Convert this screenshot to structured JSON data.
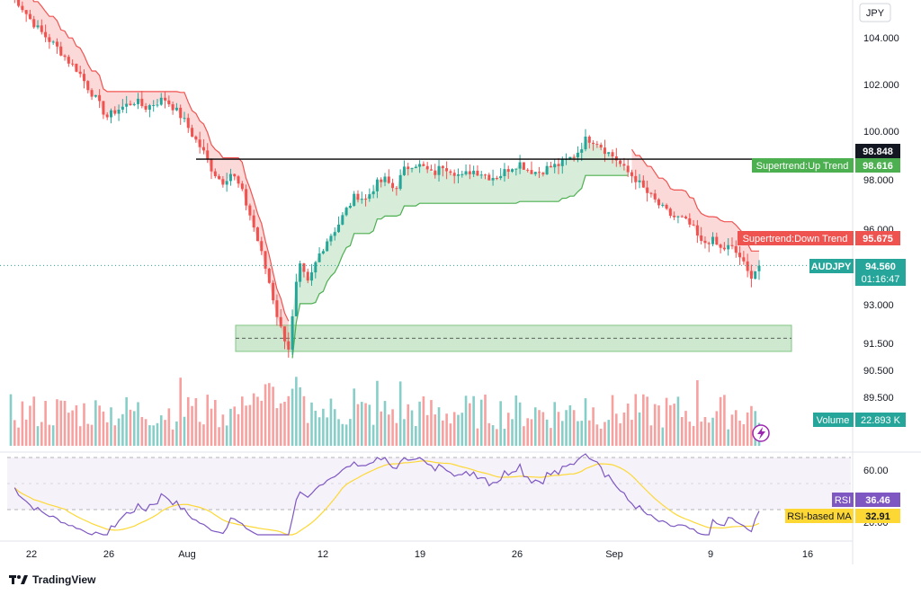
{
  "chart_data": {
    "type": "candlestick",
    "symbol": "AUDJPY",
    "currency": "JPY",
    "price_ylim": [
      88.4,
      106.2
    ],
    "price_axis_ticks": [
      "104.000",
      "102.000",
      "100.000",
      "98.000",
      "96.000",
      "93.000",
      "91.500",
      "90.500",
      "89.500"
    ],
    "x_tick_labels": [
      "22",
      "26",
      "Aug",
      "12",
      "19",
      "26",
      "Sep",
      "9",
      "16"
    ],
    "close_series": [
      105.9,
      105.4,
      104.8,
      104.3,
      103.9,
      103.5,
      103.0,
      102.6,
      101.9,
      101.3,
      100.6,
      100.9,
      101.1,
      101.3,
      101.0,
      101.2,
      101.4,
      101.0,
      100.5,
      99.8,
      99.2,
      98.4,
      97.9,
      98.3,
      97.6,
      96.5,
      95.2,
      93.8,
      92.2,
      91.3,
      94.6,
      93.8,
      94.9,
      95.6,
      96.1,
      96.8,
      97.4,
      97.2,
      97.8,
      98.0,
      97.6,
      98.4,
      98.7,
      98.5,
      98.2,
      98.6,
      98.4,
      98.1,
      98.4,
      98.3,
      98.1,
      98.2,
      98.5,
      98.7,
      98.4,
      98.3,
      98.5,
      98.6,
      98.8,
      99.1,
      99.7,
      99.6,
      99.2,
      98.9,
      98.4,
      98.1,
      97.6,
      97.2,
      96.8,
      96.5,
      96.4,
      96.1,
      95.4,
      95.6,
      95.2,
      95.3,
      94.9,
      94.1,
      94.56
    ],
    "volume_label": "Volume",
    "volume_value": "22.893 K",
    "current_price": "94.560",
    "countdown": "01:16:47",
    "horizontal_line_price": "98.848",
    "supertrend_up_label": "Supertrend:Up Trend",
    "supertrend_up_value": "98.616",
    "supertrend_down_label": "Supertrend:Down Trend",
    "supertrend_down_value": "95.675",
    "support_zone": [
      91.2,
      92.2
    ],
    "rsi": {
      "label": "RSI",
      "value": "36.46",
      "ma_label": "RSI-based MA",
      "ma_value": "32.91",
      "axis_ticks": [
        "60.00",
        "20.00"
      ]
    }
  },
  "colors": {
    "up": "#26a69a",
    "down": "#ef5350",
    "supertrend_up": "#4caf50",
    "supertrend_down": "#ef5350",
    "rsi_line": "#7e57c2",
    "rsi_ma": "#fdd835"
  },
  "brand": "TradingView"
}
